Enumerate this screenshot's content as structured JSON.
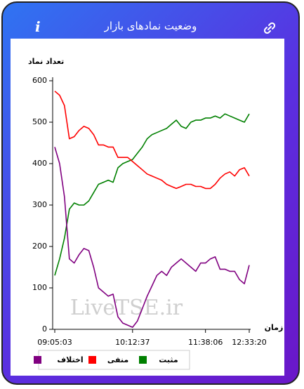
{
  "header": {
    "title": "وضعیت نمادهای بازار",
    "info_icon": "i"
  },
  "chart_data": {
    "type": "line",
    "ylabel": "تعداد نماد",
    "xlabel": "زمان",
    "watermark": "LiveTSE.ir",
    "categories": [
      "09:05:03",
      null,
      null,
      null,
      null,
      null,
      null,
      null,
      null,
      null,
      null,
      null,
      null,
      null,
      null,
      null,
      "10:12:37",
      null,
      null,
      null,
      null,
      null,
      null,
      null,
      null,
      null,
      null,
      null,
      null,
      null,
      null,
      "11:38:06",
      null,
      null,
      null,
      null,
      null,
      null,
      null,
      null,
      "12:33:20"
    ],
    "ylim": [
      0,
      600
    ],
    "yticks": [
      0,
      100,
      200,
      300,
      400,
      500,
      600
    ],
    "grid": false,
    "series": [
      {
        "name": "مثبت",
        "color": "#008000",
        "values": [
          130,
          170,
          220,
          290,
          305,
          300,
          300,
          310,
          330,
          350,
          355,
          360,
          355,
          390,
          400,
          405,
          410,
          425,
          440,
          460,
          470,
          475,
          480,
          485,
          495,
          505,
          490,
          485,
          500,
          505,
          505,
          510,
          510,
          515,
          510,
          520,
          515,
          510,
          505,
          500,
          520
        ]
      },
      {
        "name": "منفی",
        "color": "#ff0000",
        "values": [
          575,
          565,
          540,
          460,
          465,
          480,
          490,
          485,
          470,
          445,
          445,
          440,
          440,
          415,
          415,
          415,
          405,
          395,
          385,
          375,
          370,
          365,
          360,
          350,
          345,
          340,
          345,
          350,
          350,
          345,
          345,
          340,
          340,
          350,
          365,
          375,
          380,
          370,
          385,
          390,
          370
        ]
      },
      {
        "name": "اختلاف",
        "color": "#800080",
        "values": [
          440,
          400,
          320,
          170,
          160,
          180,
          195,
          190,
          150,
          100,
          90,
          80,
          85,
          30,
          15,
          10,
          5,
          20,
          50,
          80,
          105,
          130,
          140,
          130,
          150,
          160,
          170,
          160,
          150,
          140,
          160,
          160,
          170,
          175,
          145,
          145,
          140,
          140,
          120,
          110,
          155
        ]
      }
    ]
  }
}
